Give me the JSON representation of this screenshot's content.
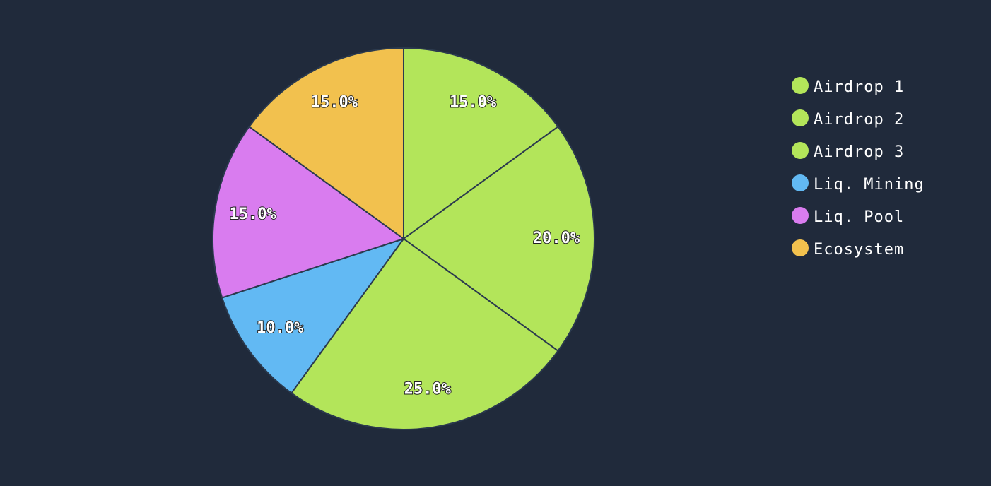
{
  "chart_data": {
    "type": "pie",
    "categories": [
      "Airdrop 1",
      "Airdrop 2",
      "Airdrop 3",
      "Liq. Mining",
      "Liq. Pool",
      "Ecosystem"
    ],
    "values": [
      15,
      20,
      25,
      10,
      15,
      15
    ],
    "value_labels": [
      "15.0%",
      "20.0%",
      "25.0%",
      "10.0%",
      "15.0%",
      "15.0%"
    ],
    "colors": [
      "#b3e55a",
      "#b3e55a",
      "#b3e55a",
      "#62b9f3",
      "#d97cef",
      "#f2c14e"
    ],
    "legend": "right"
  }
}
